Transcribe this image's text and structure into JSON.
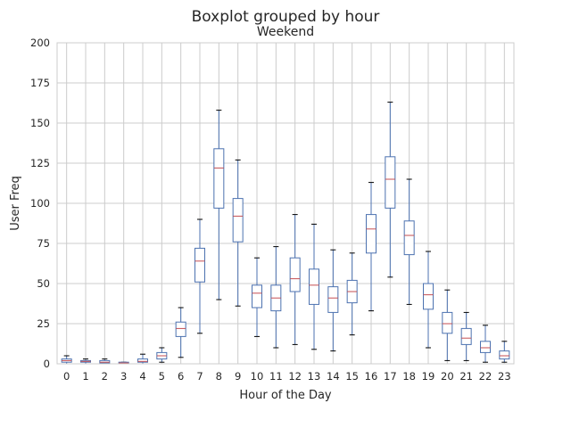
{
  "chart_data": {
    "type": "box",
    "suptitle": "Boxplot grouped by hour",
    "title": "Weekend",
    "xlabel": "Hour of the Day",
    "ylabel": "User Freq",
    "ylim": [
      0,
      200
    ],
    "yticks": [
      0,
      25,
      50,
      75,
      100,
      125,
      150,
      175,
      200
    ],
    "grid": true,
    "categories": [
      "0",
      "1",
      "2",
      "3",
      "4",
      "5",
      "6",
      "7",
      "8",
      "9",
      "10",
      "11",
      "12",
      "13",
      "14",
      "15",
      "16",
      "17",
      "18",
      "19",
      "20",
      "21",
      "22",
      "23"
    ],
    "boxes": [
      {
        "whislo": 0,
        "q1": 1,
        "med": 2,
        "q3": 3,
        "whishi": 5
      },
      {
        "whislo": 0,
        "q1": 1,
        "med": 1.5,
        "q3": 2,
        "whishi": 3
      },
      {
        "whislo": 0,
        "q1": 0.5,
        "med": 1,
        "q3": 2,
        "whishi": 3
      },
      {
        "whislo": 0,
        "q1": 0,
        "med": 0.5,
        "q3": 1,
        "whishi": 1
      },
      {
        "whislo": 0,
        "q1": 1,
        "med": 1.5,
        "q3": 3,
        "whishi": 6
      },
      {
        "whislo": 1,
        "q1": 3,
        "med": 5,
        "q3": 7,
        "whishi": 10
      },
      {
        "whislo": 4,
        "q1": 17,
        "med": 22,
        "q3": 26,
        "whishi": 35
      },
      {
        "whislo": 19,
        "q1": 51,
        "med": 64,
        "q3": 72,
        "whishi": 90
      },
      {
        "whislo": 40,
        "q1": 97,
        "med": 122,
        "q3": 134,
        "whishi": 158
      },
      {
        "whislo": 36,
        "q1": 76,
        "med": 92,
        "q3": 103,
        "whishi": 127
      },
      {
        "whislo": 17,
        "q1": 35,
        "med": 44,
        "q3": 49,
        "whishi": 66
      },
      {
        "whislo": 10,
        "q1": 33,
        "med": 41,
        "q3": 49,
        "whishi": 73
      },
      {
        "whislo": 12,
        "q1": 45,
        "med": 53,
        "q3": 66,
        "whishi": 93
      },
      {
        "whislo": 9,
        "q1": 37,
        "med": 49,
        "q3": 59,
        "whishi": 87
      },
      {
        "whislo": 8,
        "q1": 32,
        "med": 41,
        "q3": 48,
        "whishi": 71
      },
      {
        "whislo": 18,
        "q1": 38,
        "med": 45,
        "q3": 52,
        "whishi": 69
      },
      {
        "whislo": 33,
        "q1": 69,
        "med": 84,
        "q3": 93,
        "whishi": 113
      },
      {
        "whislo": 54,
        "q1": 97,
        "med": 115,
        "q3": 129,
        "whishi": 163
      },
      {
        "whislo": 37,
        "q1": 68,
        "med": 80,
        "q3": 89,
        "whishi": 115
      },
      {
        "whislo": 10,
        "q1": 34,
        "med": 43,
        "q3": 50,
        "whishi": 70
      },
      {
        "whislo": 2,
        "q1": 19,
        "med": 25,
        "q3": 32,
        "whishi": 46
      },
      {
        "whislo": 2,
        "q1": 12,
        "med": 16,
        "q3": 22,
        "whishi": 32
      },
      {
        "whislo": 1,
        "q1": 7,
        "med": 10,
        "q3": 14,
        "whishi": 24
      },
      {
        "whislo": 1,
        "q1": 3,
        "med": 5,
        "q3": 8,
        "whishi": 14
      }
    ],
    "colors": {
      "box": "#4c72b0",
      "median": "#c44e52",
      "whisker": "#4c72b0",
      "cap": "#000000",
      "grid": "#cccccc",
      "spine": "#cccccc"
    }
  }
}
